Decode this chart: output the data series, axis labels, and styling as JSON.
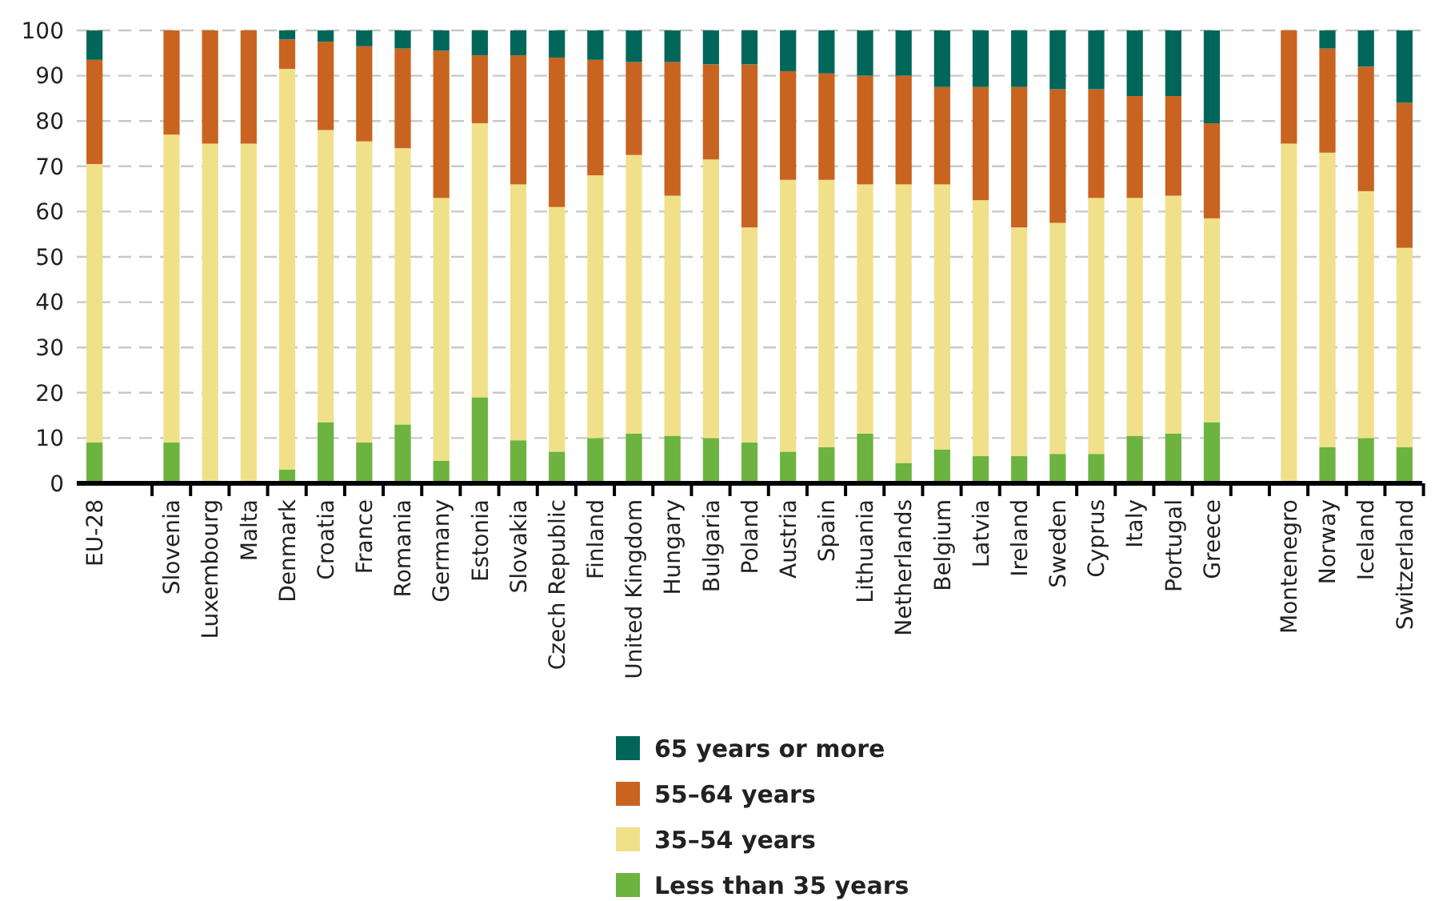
{
  "chart_data": {
    "type": "bar",
    "stacked": true,
    "grid": "y",
    "legend": "bottom",
    "categories": [
      "EU-28",
      null,
      "Slovenia",
      "Luxembourg",
      "Malta",
      "Denmark",
      "Croatia",
      "France",
      "Romania",
      "Germany",
      "Estonia",
      "Slovakia",
      "Czech Republic",
      "Finland",
      "United Kingdom",
      "Hungary",
      "Bulgaria",
      "Poland",
      "Austria",
      "Spain",
      "Lithuania",
      "Netherlands",
      "Belgium",
      "Latvia",
      "Ireland",
      "Sweden",
      "Cyprus",
      "Italy",
      "Portugal",
      "Greece",
      null,
      "Montenegro",
      "Norway",
      "Iceland",
      "Switzerland"
    ],
    "ylim": [
      0,
      100
    ],
    "yticks": [
      0,
      10,
      20,
      30,
      40,
      50,
      60,
      70,
      80,
      90,
      100
    ],
    "series": [
      {
        "name": "Less than 35 years",
        "color": "#6db33f",
        "values": [
          9,
          null,
          9,
          0,
          0,
          3,
          13.5,
          9,
          13,
          5,
          19,
          9.5,
          7,
          10,
          11,
          10.5,
          10,
          9,
          7,
          8,
          11,
          4.5,
          7.5,
          6,
          6,
          6.5,
          6.5,
          10.5,
          11,
          13.5,
          null,
          0,
          8,
          10,
          8
        ]
      },
      {
        "name": "35–54 years",
        "color": "#f0e08a",
        "values": [
          61.5,
          null,
          68,
          75,
          75,
          88.5,
          64.5,
          66.5,
          61,
          58,
          60.5,
          56.5,
          54,
          58,
          61.5,
          53,
          61.5,
          47.5,
          60,
          59,
          55,
          61.5,
          58.5,
          56.5,
          50.5,
          51,
          56.5,
          52.5,
          52.5,
          45,
          null,
          75,
          65,
          54.5,
          44
        ]
      },
      {
        "name": "55–64 years",
        "color": "#c8641f",
        "values": [
          23,
          null,
          23,
          25,
          25,
          6.5,
          19.5,
          21,
          22,
          32.5,
          15,
          28.5,
          33,
          25.5,
          20.5,
          29.5,
          21,
          36,
          24,
          23.5,
          24,
          24,
          21.5,
          25,
          31,
          29.5,
          24,
          22.5,
          22,
          21,
          null,
          25,
          23,
          27.5,
          32
        ]
      },
      {
        "name": "65 years or more",
        "color": "#00665a",
        "values": [
          6.5,
          null,
          0,
          0,
          0,
          2,
          2.5,
          3.5,
          4,
          4.5,
          5.5,
          5.5,
          6,
          6.5,
          7,
          7,
          7.5,
          7.5,
          9,
          9.5,
          10,
          10,
          12.5,
          12.5,
          12.5,
          13,
          13,
          14.5,
          14.5,
          20.5,
          null,
          0,
          4,
          8,
          16
        ]
      }
    ]
  }
}
